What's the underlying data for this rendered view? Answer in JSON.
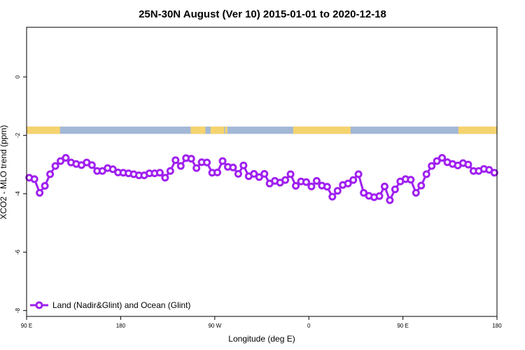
{
  "chart_data": {
    "type": "line",
    "title": "25N-30N August (Ver 10)   2015-01-01 to 2020-12-18",
    "xlabel": "Longitude (deg E)",
    "ylabel": "XCO2 - MLO trend (ppm)",
    "xlim": [
      90,
      540
    ],
    "ylim": [
      -8.2,
      1.7
    ],
    "x_ticks": [
      {
        "value": 90,
        "label": "90 E"
      },
      {
        "value": 180,
        "label": "180"
      },
      {
        "value": 270,
        "label": "90 W"
      },
      {
        "value": 360,
        "label": "0"
      },
      {
        "value": 450,
        "label": "90 E"
      },
      {
        "value": 540,
        "label": "180"
      }
    ],
    "y_ticks": [
      {
        "value": 0,
        "label": "0"
      },
      {
        "value": -2,
        "label": "-2"
      },
      {
        "value": -4,
        "label": "-4"
      },
      {
        "value": -6,
        "label": "-6"
      },
      {
        "value": -8,
        "label": "-8"
      }
    ],
    "land_mask": {
      "y_range": [
        -1.95,
        -1.7
      ],
      "land_color": "#f5d36e",
      "ocean_color": "#a3b8d6",
      "land_intervals": [
        [
          90,
          122
        ],
        [
          247,
          261
        ],
        [
          266,
          279
        ],
        [
          280,
          282
        ],
        [
          345,
          400
        ],
        [
          503,
          552
        ]
      ]
    },
    "legend": {
      "position": "bottom-left"
    },
    "series": [
      {
        "name": "Land (Nadir&Glint) and Ocean (Glint)",
        "color": "#a020f0",
        "x": [
          92.5,
          97.5,
          102.5,
          107.5,
          112.5,
          117.5,
          122.5,
          127.5,
          132.5,
          137.5,
          142.5,
          147.5,
          152.5,
          157.5,
          162.5,
          167.5,
          172.5,
          177.5,
          182.5,
          187.5,
          192.5,
          197.5,
          202.5,
          207.5,
          212.5,
          217.5,
          222.5,
          227.5,
          232.5,
          237.5,
          242.5,
          247.5,
          252.5,
          257.5,
          262.5,
          267.5,
          272.5,
          277.5,
          282.5,
          287.5,
          292.5,
          297.5,
          302.5,
          307.5,
          312.5,
          317.5,
          322.5,
          327.5,
          332.5,
          337.5,
          342.5,
          347.5,
          352.5,
          357.5,
          362.5,
          367.5,
          372.5,
          377.5,
          382.5,
          387.5,
          392.5,
          397.5,
          402.5,
          407.5,
          412.5,
          417.5,
          422.5,
          427.5,
          432.5,
          437.5,
          442.5,
          447.5,
          452.5,
          457.5,
          462.5,
          467.5,
          472.5,
          477.5,
          482.5,
          487.5,
          492.5,
          497.5,
          502.5,
          507.5,
          512.5,
          517.5,
          522.5,
          527.5,
          532.5,
          537.5
        ],
        "y": [
          -3.45,
          -3.5,
          -3.97,
          -3.73,
          -3.33,
          -3.05,
          -2.88,
          -2.77,
          -2.93,
          -2.98,
          -3.02,
          -2.93,
          -3.02,
          -3.22,
          -3.22,
          -3.12,
          -3.16,
          -3.27,
          -3.28,
          -3.3,
          -3.33,
          -3.37,
          -3.37,
          -3.3,
          -3.3,
          -3.28,
          -3.45,
          -3.22,
          -2.85,
          -3.05,
          -2.78,
          -2.8,
          -3.12,
          -2.92,
          -2.93,
          -3.28,
          -3.27,
          -2.88,
          -3.08,
          -3.1,
          -3.32,
          -3.03,
          -3.4,
          -3.32,
          -3.43,
          -3.32,
          -3.65,
          -3.56,
          -3.62,
          -3.53,
          -3.33,
          -3.73,
          -3.58,
          -3.6,
          -3.75,
          -3.56,
          -3.72,
          -3.76,
          -4.1,
          -3.9,
          -3.7,
          -3.65,
          -3.53,
          -3.33,
          -3.97,
          -4.07,
          -4.12,
          -4.08,
          -3.75,
          -4.22,
          -3.85,
          -3.58,
          -3.5,
          -3.52,
          -3.97,
          -3.72,
          -3.33,
          -3.05,
          -2.88,
          -2.77,
          -2.92,
          -2.98,
          -3.03,
          -2.95,
          -3.0,
          -3.22,
          -3.22,
          -3.15,
          -3.18,
          -3.28
        ]
      }
    ]
  }
}
